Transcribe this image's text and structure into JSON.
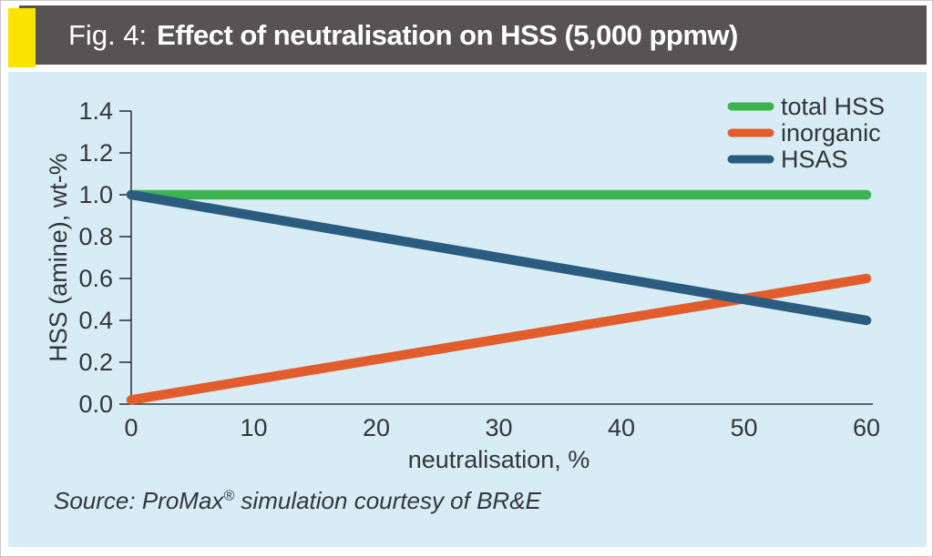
{
  "header": {
    "figure_label": "Fig. 4:",
    "title": "Effect of neutralisation on HSS (5,000 ppmw)"
  },
  "source": {
    "prefix": "Source: ProMax",
    "registered": "®",
    "suffix": " simulation courtesy of BR&E"
  },
  "colors": {
    "header_bg": "#575253",
    "accent_yellow": "#f9e300",
    "panel_bg": "#d7ecf5",
    "axis": "#35363b",
    "text": "#33363b",
    "title_text": "#ffffff"
  },
  "chart_data": {
    "type": "line",
    "title": "Effect of neutralisation on HSS (5,000 ppmw)",
    "xlabel": "neutralisation, %",
    "ylabel": "HSS (amine), wt-%",
    "xlim": [
      0,
      60
    ],
    "ylim": [
      0,
      1.4
    ],
    "xticks": [
      "0",
      "10",
      "20",
      "30",
      "40",
      "50",
      "60"
    ],
    "yticks": [
      "0.0",
      "0.2",
      "0.4",
      "0.6",
      "0.8",
      "1.0",
      "1.2",
      "1.4"
    ],
    "grid": false,
    "legend_position": "top-right",
    "series": [
      {
        "name": "total HSS",
        "color": "#3cb34f",
        "points": [
          [
            0,
            1.0
          ],
          [
            60,
            1.0
          ]
        ]
      },
      {
        "name": "inorganic",
        "color": "#e35c2b",
        "points": [
          [
            0,
            0.02
          ],
          [
            60,
            0.6
          ]
        ]
      },
      {
        "name": "HSAS",
        "color": "#2b5c80",
        "points": [
          [
            0,
            1.0
          ],
          [
            60,
            0.4
          ]
        ]
      }
    ]
  }
}
